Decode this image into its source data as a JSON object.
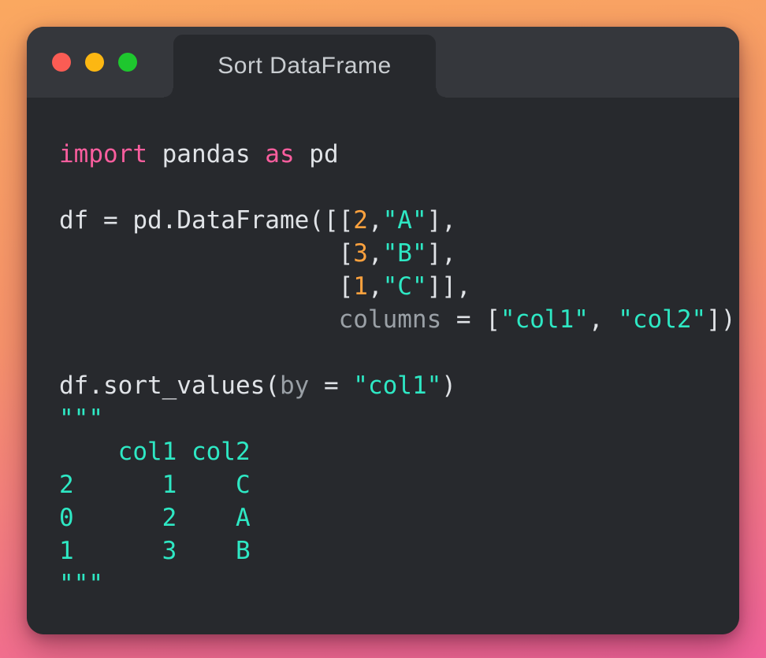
{
  "window": {
    "title": "Sort DataFrame",
    "controls": [
      {
        "name": "close",
        "color": "#fa5c54"
      },
      {
        "name": "minimize",
        "color": "#fcb712"
      },
      {
        "name": "maximize",
        "color": "#1ec72e"
      }
    ]
  },
  "colors": {
    "background_gradient_top": "#faa860",
    "background_gradient_bottom": "#f0629a",
    "window_body": "#27292d",
    "titlebar": "#35373c",
    "title_text": "#c9cdd1",
    "code_text": "#e0e3e7",
    "keyword": "#fa5e9e",
    "number": "#ffa23e",
    "string": "#2ee8c4",
    "parameter": "#9aa0a6"
  },
  "code": {
    "language": "python",
    "lines": [
      [
        {
          "type": "keyword",
          "text": "import"
        },
        {
          "type": "text",
          "text": " pandas "
        },
        {
          "type": "keyword",
          "text": "as"
        },
        {
          "type": "text",
          "text": " pd"
        }
      ],
      [],
      [
        {
          "type": "text",
          "text": "df = pd.DataFrame([["
        },
        {
          "type": "number",
          "text": "2"
        },
        {
          "type": "text",
          "text": ","
        },
        {
          "type": "string",
          "text": "\"A\""
        },
        {
          "type": "text",
          "text": "],"
        }
      ],
      [
        {
          "type": "text",
          "text": "                   ["
        },
        {
          "type": "number",
          "text": "3"
        },
        {
          "type": "text",
          "text": ","
        },
        {
          "type": "string",
          "text": "\"B\""
        },
        {
          "type": "text",
          "text": "],"
        }
      ],
      [
        {
          "type": "text",
          "text": "                   ["
        },
        {
          "type": "number",
          "text": "1"
        },
        {
          "type": "text",
          "text": ","
        },
        {
          "type": "string",
          "text": "\"C\""
        },
        {
          "type": "text",
          "text": "]],"
        }
      ],
      [
        {
          "type": "text",
          "text": "                   "
        },
        {
          "type": "muted",
          "text": "columns"
        },
        {
          "type": "text",
          "text": " = ["
        },
        {
          "type": "string",
          "text": "\"col1\""
        },
        {
          "type": "text",
          "text": ", "
        },
        {
          "type": "string",
          "text": "\"col2\""
        },
        {
          "type": "text",
          "text": "])"
        }
      ],
      [],
      [
        {
          "type": "text",
          "text": "df.sort_values("
        },
        {
          "type": "muted",
          "text": "by"
        },
        {
          "type": "text",
          "text": " = "
        },
        {
          "type": "string",
          "text": "\"col1\""
        },
        {
          "type": "text",
          "text": ")"
        }
      ],
      [
        {
          "type": "string",
          "text": "\"\"\""
        }
      ],
      [
        {
          "type": "output",
          "text": "    col1 col2"
        }
      ],
      [
        {
          "type": "output",
          "text": "2      1    C"
        }
      ],
      [
        {
          "type": "output",
          "text": "0      2    A"
        }
      ],
      [
        {
          "type": "output",
          "text": "1      3    B"
        }
      ],
      [
        {
          "type": "string",
          "text": "\"\"\""
        }
      ]
    ]
  }
}
